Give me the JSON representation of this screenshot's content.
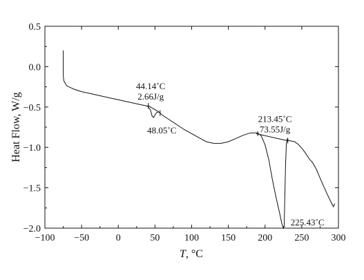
{
  "chart_data": {
    "type": "line",
    "title": "",
    "xlabel_var": "T",
    "xlabel_unit": ", °C",
    "ylabel": "Heat Flow, W/g",
    "xlim": [
      -100,
      300
    ],
    "ylim": [
      -2.0,
      0.5
    ],
    "xticks": [
      -100,
      -50,
      0,
      50,
      100,
      150,
      200,
      250,
      300
    ],
    "yticks": [
      0.5,
      0.0,
      -0.5,
      -1.0,
      -1.5,
      -2.0
    ],
    "xtick_labels": [
      "−100",
      "−50",
      "0",
      "50",
      "100",
      "150",
      "200",
      "250",
      "300"
    ],
    "ytick_labels": [
      "0.5",
      "0.0",
      "−0.5",
      "−1.0",
      "−1.5",
      "−2.0"
    ],
    "grid": false,
    "line_color": "#111111",
    "series": [
      {
        "x": [
          -75,
          -75,
          -74,
          -70,
          -60,
          -50,
          -40,
          -30,
          -20,
          -10,
          0,
          10,
          20,
          30,
          40,
          44,
          46,
          48,
          50,
          52,
          55,
          60,
          70,
          80,
          90,
          100,
          110,
          120,
          130,
          140,
          150,
          160,
          170,
          180,
          190,
          195,
          200,
          205,
          210,
          215,
          220,
          223,
          225,
          226,
          227,
          228,
          229,
          230,
          231,
          235,
          240,
          245,
          250,
          255,
          260,
          265,
          270,
          275,
          280,
          285,
          290,
          293,
          295
        ],
        "y": [
          0.2,
          -0.12,
          -0.18,
          -0.24,
          -0.28,
          -0.31,
          -0.33,
          -0.35,
          -0.37,
          -0.39,
          -0.41,
          -0.43,
          -0.45,
          -0.47,
          -0.49,
          -0.54,
          -0.61,
          -0.63,
          -0.6,
          -0.57,
          -0.56,
          -0.6,
          -0.66,
          -0.72,
          -0.78,
          -0.83,
          -0.88,
          -0.93,
          -0.95,
          -0.95,
          -0.93,
          -0.89,
          -0.85,
          -0.82,
          -0.82,
          -0.86,
          -0.97,
          -1.15,
          -1.4,
          -1.62,
          -1.82,
          -1.95,
          -2.0,
          -1.98,
          -1.6,
          -1.2,
          -0.96,
          -0.9,
          -0.91,
          -0.92,
          -0.94,
          -0.98,
          -1.02,
          -1.06,
          -1.12,
          -1.18,
          -1.28,
          -1.4,
          -1.5,
          -1.58,
          -1.66,
          -1.72,
          -1.7
        ]
      }
    ],
    "annotations": [
      {
        "id": "peak1-onset",
        "text": "44.14˚C",
        "x": 44.14,
        "y": -0.52
      },
      {
        "id": "peak1-enthalpy",
        "text": "2.66J/g",
        "x": 44.14,
        "y": -0.52
      },
      {
        "id": "peak1-max",
        "text": "48.05˚C",
        "x": 48.05,
        "y": -0.63
      },
      {
        "id": "peak2-onset",
        "text": "213.45˚C",
        "x": 213.45,
        "y": -0.9
      },
      {
        "id": "peak2-enthalpy",
        "text": "73.55J/g",
        "x": 213.45,
        "y": -0.9
      },
      {
        "id": "peak2-max",
        "text": "225.43˚C",
        "x": 225.43,
        "y": -2.0
      }
    ]
  }
}
